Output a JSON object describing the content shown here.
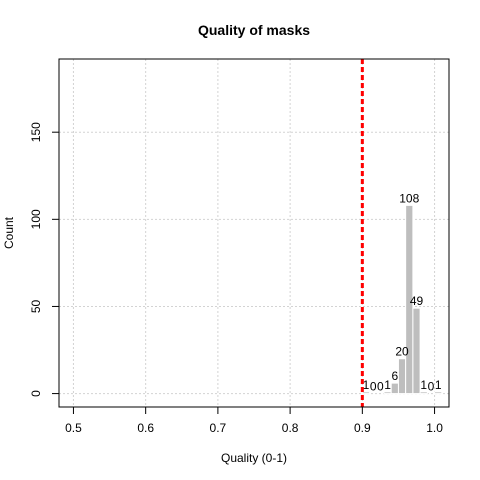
{
  "chart_data": {
    "type": "bar",
    "title": "Quality of masks",
    "xlabel": "Quality (0-1)",
    "ylabel": "Count",
    "xlim": [
      0.48,
      1.02
    ],
    "ylim": [
      -7.7,
      192
    ],
    "xticks": [
      0.5,
      0.6,
      0.7,
      0.8,
      0.9,
      1.0
    ],
    "xtick_labels": [
      "0.5",
      "0.6",
      "0.7",
      "0.8",
      "0.9",
      "1.0"
    ],
    "yticks": [
      0,
      50,
      100,
      150
    ],
    "ytick_labels": [
      "0",
      "50",
      "100",
      "150"
    ],
    "grid": true,
    "bin_width": 0.01,
    "bins": [
      {
        "start": 0.9,
        "end": 0.91,
        "value": 1,
        "label": "1"
      },
      {
        "start": 0.91,
        "end": 0.92,
        "value": 0,
        "label": "0"
      },
      {
        "start": 0.92,
        "end": 0.93,
        "value": 0,
        "label": "0"
      },
      {
        "start": 0.93,
        "end": 0.94,
        "value": 1,
        "label": "1"
      },
      {
        "start": 0.94,
        "end": 0.95,
        "value": 6,
        "label": "6"
      },
      {
        "start": 0.95,
        "end": 0.96,
        "value": 20,
        "label": "20"
      },
      {
        "start": 0.96,
        "end": 0.97,
        "value": 108,
        "label": "108"
      },
      {
        "start": 0.97,
        "end": 0.98,
        "value": 49,
        "label": "49"
      },
      {
        "start": 0.98,
        "end": 0.99,
        "value": 1,
        "label": "1"
      },
      {
        "start": 0.99,
        "end": 1.0,
        "value": 0,
        "label": "0"
      },
      {
        "start": 1.0,
        "end": 1.01,
        "value": 1,
        "label": "1"
      }
    ],
    "threshold": {
      "x": 0.9,
      "color": "#ff0000"
    },
    "colors": {
      "bar": "#bebebe",
      "grid": "#d3d3d3",
      "threshold": "#ff0000"
    }
  }
}
